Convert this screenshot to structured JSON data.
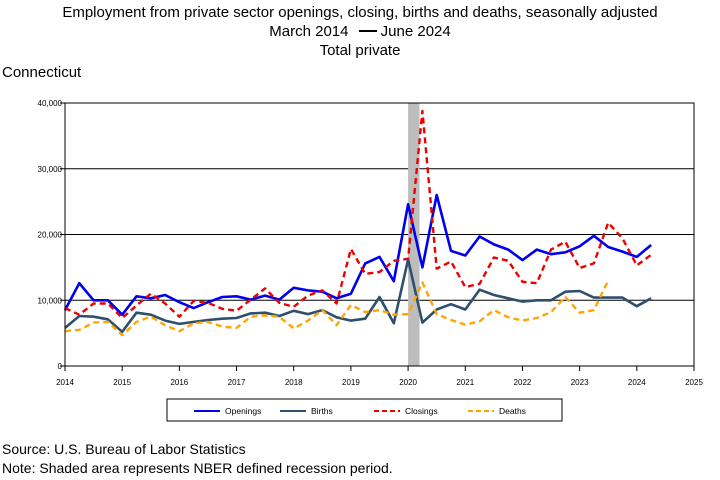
{
  "title": {
    "line1": "Employment from private sector openings, closing, births and deaths, seasonally adjusted",
    "line2_start": "March 2014",
    "line2_end": "June 2024",
    "line3": "Total private"
  },
  "region": "Connecticut",
  "footer": {
    "source": "Source: U.S. Bureau of Labor Statistics",
    "note": "Note: Shaded area represents NBER defined recession period."
  },
  "chart_data": {
    "type": "line",
    "title": "Employment from private sector openings, closing, births and deaths, seasonally adjusted",
    "xlim": [
      2014,
      2025
    ],
    "ylim": [
      0,
      40000
    ],
    "grid": "horizontal",
    "legend_placement": "bottom",
    "recession": {
      "start": 2020.0,
      "end": 2020.2
    },
    "x_ticks": [
      "2014",
      "2015",
      "2016",
      "2017",
      "2018",
      "2019",
      "2020",
      "2021",
      "2022",
      "2023",
      "2024",
      "2025"
    ],
    "y_ticks": [
      {
        "value": 0,
        "label": "0"
      },
      {
        "value": 10000,
        "label": "10,000"
      },
      {
        "value": 20000,
        "label": "20,000"
      },
      {
        "value": 30000,
        "label": "30,000"
      },
      {
        "value": 40000,
        "label": "40,000"
      }
    ],
    "x": [
      2014.0,
      2014.25,
      2014.5,
      2014.75,
      2015.0,
      2015.25,
      2015.5,
      2015.75,
      2016.0,
      2016.25,
      2016.5,
      2016.75,
      2017.0,
      2017.25,
      2017.5,
      2017.75,
      2018.0,
      2018.25,
      2018.5,
      2018.75,
      2019.0,
      2019.25,
      2019.5,
      2019.75,
      2020.0,
      2020.25,
      2020.5,
      2020.75,
      2021.0,
      2021.25,
      2021.5,
      2021.75,
      2022.0,
      2022.25,
      2022.5,
      2022.75,
      2023.0,
      2023.25,
      2023.5,
      2023.75,
      2024.0,
      2024.25
    ],
    "series": [
      {
        "name": "Openings",
        "color": "#0000ee",
        "dash": "solid",
        "values": [
          8500,
          12600,
          10000,
          10000,
          7800,
          10600,
          10300,
          10800,
          9700,
          8800,
          9700,
          10500,
          10600,
          10100,
          10700,
          10100,
          11900,
          11500,
          11300,
          10300,
          11000,
          15600,
          16600,
          12900,
          24600,
          15000,
          26000,
          17500,
          16800,
          19700,
          18500,
          17700,
          16100,
          17700,
          17000,
          17300,
          18200,
          19800,
          18100,
          17400,
          16600,
          18400
        ]
      },
      {
        "name": "Births",
        "color": "#2f4f6f",
        "dash": "solid",
        "values": [
          5800,
          7600,
          7500,
          7100,
          5200,
          8100,
          7800,
          6900,
          6400,
          6700,
          7000,
          7200,
          7300,
          8000,
          8100,
          7600,
          8400,
          7900,
          8500,
          7400,
          6900,
          7200,
          10500,
          6500,
          16200,
          6600,
          8600,
          9400,
          8600,
          11600,
          10800,
          10300,
          9800,
          10000,
          10000,
          11300,
          11400,
          10400,
          10400,
          10400,
          9100,
          10300
        ]
      },
      {
        "name": "Closings",
        "color": "#ee0000",
        "dash": "dashed",
        "values": [
          8800,
          7800,
          9500,
          9500,
          7300,
          9200,
          11000,
          9500,
          7500,
          9900,
          9600,
          8700,
          8400,
          10100,
          11800,
          9600,
          9000,
          10700,
          11500,
          9500,
          17800,
          14000,
          14300,
          16000,
          16300,
          38800,
          14800,
          15900,
          12000,
          12500,
          16500,
          16000,
          12800,
          12600,
          17700,
          18900,
          14900,
          15600,
          21800,
          19400,
          15300,
          16900
        ]
      },
      {
        "name": "Deaths",
        "color": "#ffa500",
        "dash": "dashed",
        "values": [
          5300,
          5500,
          6600,
          6700,
          4700,
          6700,
          7500,
          6200,
          5300,
          6500,
          6700,
          6000,
          5800,
          7500,
          7700,
          7500,
          5700,
          6900,
          8500,
          6200,
          9300,
          8200,
          8500,
          7800,
          7900,
          12700,
          7900,
          7000,
          6300,
          6800,
          8500,
          7400,
          6900,
          7300,
          8200,
          10500,
          8100,
          8500,
          13000,
          null,
          null,
          null
        ]
      }
    ]
  }
}
